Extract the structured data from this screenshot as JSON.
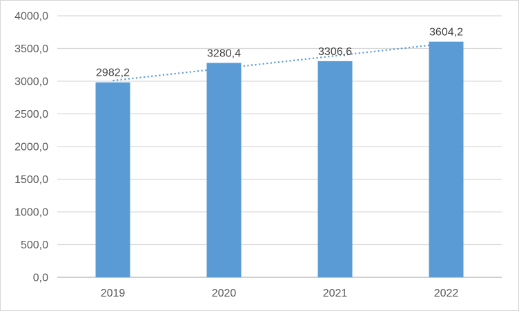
{
  "chart_data": {
    "type": "bar",
    "title": "",
    "xlabel": "",
    "ylabel": "",
    "categories": [
      "2019",
      "2020",
      "2021",
      "2022"
    ],
    "values": [
      2982.2,
      3280.4,
      3306.6,
      3604.2
    ],
    "value_labels": [
      "2982,2",
      "3280,4",
      "3306,6",
      "3604,2"
    ],
    "ylim": [
      0,
      4000
    ],
    "ytick_step": 500,
    "ytick_labels": [
      "0,0",
      "500,0",
      "1000,0",
      "1500,0",
      "2000,0",
      "2500,0",
      "3000,0",
      "3500,0",
      "4000,0"
    ],
    "grid": true,
    "legend": "none",
    "trendline": {
      "type": "linear",
      "style": "dotted",
      "endpoint_values": [
        3009.5,
        3577.2
      ]
    },
    "colors": {
      "bar": "#5b9bd5",
      "trendline": "#5b9bd5",
      "gridline": "#d9d9d9",
      "axis_line": "#bfbfbf",
      "tick_label": "#595959",
      "data_label": "#404040",
      "chart_border": "#d6d6d6",
      "background": "#ffffff"
    }
  }
}
